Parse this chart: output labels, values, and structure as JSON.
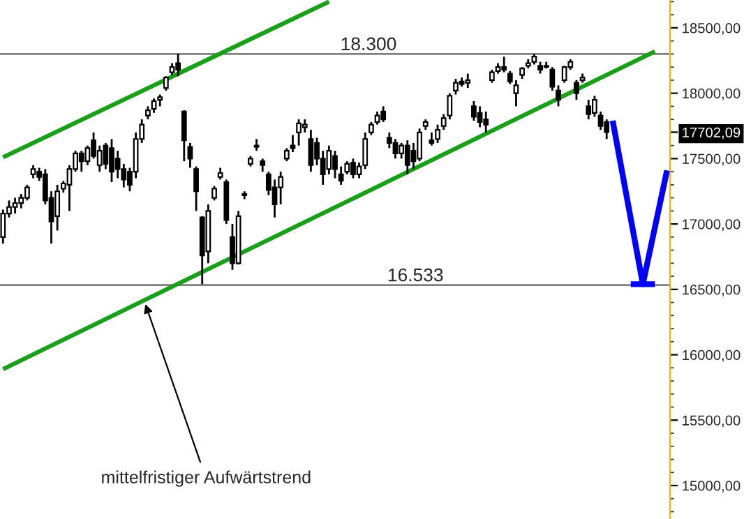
{
  "chart_data": {
    "type": "candlestick",
    "categories": [
      null,
      null,
      null,
      null,
      null,
      null,
      null,
      null,
      null,
      null,
      null,
      null,
      null,
      null,
      null,
      null,
      null,
      null,
      null,
      null,
      null,
      null,
      null,
      null,
      null,
      null,
      null,
      null,
      null,
      null,
      null,
      null,
      null,
      null,
      null,
      null,
      null,
      null,
      null,
      null,
      null,
      null,
      null,
      null,
      null,
      null,
      null,
      null,
      null,
      null,
      null,
      null,
      null,
      null,
      null,
      null,
      null,
      null,
      null,
      null,
      null,
      null,
      null,
      null,
      null,
      null,
      null,
      null,
      null,
      null,
      null,
      null,
      null,
      null,
      null,
      null,
      null,
      null,
      null,
      null,
      null,
      null,
      null,
      null,
      null,
      null,
      null,
      null,
      null,
      null,
      null,
      null,
      null,
      null,
      null,
      null,
      null,
      null,
      null,
      null,
      null,
      null,
      null,
      null,
      null,
      null,
      null,
      null,
      null,
      null,
      null
    ],
    "ohlc": [
      [
        16900,
        17110,
        16850,
        17080
      ],
      [
        17080,
        17180,
        17050,
        17130
      ],
      [
        17130,
        17200,
        17080,
        17160
      ],
      [
        17160,
        17230,
        17120,
        17200
      ],
      [
        17200,
        17300,
        17180,
        17280
      ],
      [
        17380,
        17450,
        17350,
        17420
      ],
      [
        17400,
        17430,
        17330,
        17360
      ],
      [
        17380,
        17420,
        17150,
        17180
      ],
      [
        17200,
        17250,
        16850,
        17020
      ],
      [
        17060,
        17300,
        16950,
        17250
      ],
      [
        17270,
        17330,
        17240,
        17310
      ],
      [
        17300,
        17450,
        17100,
        17420
      ],
      [
        17420,
        17560,
        17400,
        17540
      ],
      [
        17540,
        17560,
        17400,
        17480
      ],
      [
        17480,
        17600,
        17450,
        17580
      ],
      [
        17640,
        17700,
        17500,
        17520
      ],
      [
        17450,
        17600,
        17400,
        17560
      ],
      [
        17600,
        17620,
        17420,
        17460
      ],
      [
        17580,
        17650,
        17320,
        17400
      ],
      [
        17500,
        17560,
        17350,
        17420
      ],
      [
        17420,
        17460,
        17280,
        17340
      ],
      [
        17400,
        17430,
        17250,
        17300
      ],
      [
        17400,
        17700,
        17350,
        17650
      ],
      [
        17650,
        17800,
        17620,
        17760
      ],
      [
        17830,
        17900,
        17800,
        17870
      ],
      [
        17880,
        17960,
        17850,
        17940
      ],
      [
        17950,
        17990,
        17900,
        17970
      ],
      [
        18040,
        18130,
        18020,
        18120
      ],
      [
        18160,
        18230,
        18140,
        18200
      ],
      [
        18230,
        18300,
        18130,
        18180
      ],
      [
        17860,
        17870,
        17480,
        17640
      ],
      [
        17590,
        17620,
        17430,
        17500
      ],
      [
        17420,
        17440,
        17100,
        17250
      ],
      [
        17050,
        17060,
        16540,
        16760
      ],
      [
        16790,
        17150,
        16700,
        17100
      ],
      [
        17200,
        17290,
        17180,
        17270
      ],
      [
        17360,
        17430,
        17340,
        17390
      ],
      [
        17320,
        17340,
        17000,
        17030
      ],
      [
        16900,
        17000,
        16650,
        16700
      ],
      [
        16700,
        17100,
        16690,
        17060
      ],
      [
        17220,
        17250,
        17190,
        17230
      ],
      [
        17460,
        17520,
        17440,
        17500
      ],
      [
        17600,
        17650,
        17560,
        17590
      ],
      [
        17480,
        17500,
        17400,
        17450
      ],
      [
        17380,
        17400,
        17220,
        17260
      ],
      [
        17280,
        17340,
        17050,
        17150
      ],
      [
        17280,
        17400,
        17150,
        17360
      ],
      [
        17500,
        17580,
        17480,
        17560
      ],
      [
        17600,
        17680,
        17550,
        17580
      ],
      [
        17700,
        17800,
        17600,
        17770
      ],
      [
        17740,
        17800,
        17700,
        17760
      ],
      [
        17650,
        17720,
        17400,
        17450
      ],
      [
        17620,
        17660,
        17450,
        17500
      ],
      [
        17500,
        17560,
        17300,
        17380
      ],
      [
        17420,
        17600,
        17380,
        17560
      ],
      [
        17520,
        17560,
        17350,
        17420
      ],
      [
        17380,
        17440,
        17300,
        17330
      ],
      [
        17400,
        17480,
        17380,
        17460
      ],
      [
        17470,
        17500,
        17350,
        17380
      ],
      [
        17380,
        17470,
        17350,
        17440
      ],
      [
        17450,
        17700,
        17420,
        17650
      ],
      [
        17700,
        17780,
        17680,
        17760
      ],
      [
        17780,
        17860,
        17760,
        17830
      ],
      [
        17860,
        17900,
        17780,
        17800
      ],
      [
        17660,
        17700,
        17580,
        17620
      ],
      [
        17620,
        17650,
        17500,
        17540
      ],
      [
        17540,
        17620,
        17500,
        17600
      ],
      [
        17600,
        17640,
        17380,
        17450
      ],
      [
        17560,
        17620,
        17420,
        17480
      ],
      [
        17500,
        17730,
        17480,
        17700
      ],
      [
        17750,
        17800,
        17720,
        17780
      ],
      [
        17640,
        17700,
        17600,
        17620
      ],
      [
        17650,
        17760,
        17620,
        17720
      ],
      [
        17750,
        17840,
        17720,
        17810
      ],
      [
        17830,
        18000,
        17800,
        17980
      ],
      [
        18020,
        18110,
        17990,
        18080
      ],
      [
        18090,
        18120,
        18050,
        18070
      ],
      [
        18080,
        18150,
        18040,
        18100
      ],
      [
        17900,
        17940,
        17790,
        17820
      ],
      [
        17850,
        17900,
        17740,
        17780
      ],
      [
        17800,
        17860,
        17700,
        17760
      ],
      [
        18100,
        18180,
        18080,
        18160
      ],
      [
        18170,
        18230,
        18150,
        18200
      ],
      [
        18200,
        18280,
        18160,
        18180
      ],
      [
        18150,
        18170,
        18070,
        18090
      ],
      [
        18000,
        18100,
        17900,
        18060
      ],
      [
        18140,
        18200,
        18110,
        18190
      ],
      [
        18210,
        18260,
        18190,
        18230
      ],
      [
        18240,
        18300,
        18220,
        18280
      ],
      [
        18210,
        18240,
        18150,
        18180
      ],
      [
        18200,
        18240,
        18190,
        18210
      ],
      [
        18180,
        18200,
        18020,
        18050
      ],
      [
        18020,
        18060,
        17900,
        17950
      ],
      [
        18100,
        18210,
        18080,
        18200
      ],
      [
        18200,
        18260,
        18180,
        18240
      ],
      [
        18080,
        18100,
        17950,
        18000
      ],
      [
        18100,
        18150,
        18080,
        18120
      ],
      [
        17900,
        17950,
        17800,
        17840
      ],
      [
        17850,
        17980,
        17820,
        17950
      ],
      [
        17830,
        17860,
        17720,
        17750
      ],
      [
        17780,
        17800,
        17650,
        17702.09
      ],
      null,
      null,
      null,
      null,
      null,
      null,
      null,
      null,
      null,
      null
    ],
    "series": [
      {
        "type": "line",
        "color": "#18a018",
        "values": [
          17510,
          null,
          null,
          null,
          null,
          null,
          null,
          null,
          null,
          null,
          null,
          null,
          null,
          null,
          null,
          null,
          null,
          null,
          null,
          null,
          null,
          null,
          null,
          null,
          null,
          null,
          null,
          null,
          null,
          null,
          null,
          null,
          null,
          null,
          null,
          null,
          null,
          null,
          null,
          null,
          null,
          null,
          null,
          null,
          null,
          null,
          null,
          null,
          null,
          null,
          null,
          null,
          null,
          null,
          18700,
          null,
          null,
          null,
          null,
          null,
          null,
          null,
          null,
          null,
          null,
          null,
          null,
          null,
          null,
          null,
          null,
          null,
          null,
          null,
          null,
          null,
          null,
          null,
          null,
          null,
          null,
          null,
          null,
          null,
          null,
          null,
          null,
          null,
          null,
          null,
          null,
          null,
          null,
          null,
          null,
          null,
          null,
          null,
          null,
          null,
          null,
          null,
          null,
          null,
          null,
          null,
          null,
          null,
          null,
          null,
          null
        ]
      },
      {
        "type": "line",
        "color": "#18a018",
        "values": [
          15890,
          null,
          null,
          null,
          null,
          null,
          null,
          null,
          null,
          null,
          null,
          null,
          null,
          null,
          null,
          null,
          null,
          null,
          null,
          null,
          null,
          null,
          null,
          null,
          null,
          null,
          null,
          null,
          null,
          null,
          null,
          null,
          null,
          null,
          null,
          null,
          null,
          null,
          null,
          null,
          null,
          null,
          null,
          null,
          null,
          null,
          null,
          null,
          null,
          null,
          null,
          null,
          null,
          null,
          null,
          null,
          null,
          null,
          null,
          null,
          null,
          null,
          null,
          null,
          null,
          null,
          null,
          null,
          null,
          null,
          null,
          null,
          null,
          null,
          null,
          null,
          null,
          null,
          null,
          null,
          null,
          null,
          null,
          null,
          null,
          null,
          null,
          null,
          null,
          null,
          null,
          null,
          null,
          null,
          null,
          null,
          null,
          null,
          null,
          null,
          null,
          null,
          null,
          null,
          null,
          null,
          null,
          null,
          18320,
          null,
          null
        ]
      },
      {
        "type": "line",
        "color": "#0000ff",
        "values": [
          null,
          null,
          null,
          null,
          null,
          null,
          null,
          null,
          null,
          null,
          null,
          null,
          null,
          null,
          null,
          null,
          null,
          null,
          null,
          null,
          null,
          null,
          null,
          null,
          null,
          null,
          null,
          null,
          null,
          null,
          null,
          null,
          null,
          null,
          null,
          null,
          null,
          null,
          null,
          null,
          null,
          null,
          null,
          null,
          null,
          null,
          null,
          null,
          null,
          null,
          null,
          null,
          null,
          null,
          null,
          null,
          null,
          null,
          null,
          null,
          null,
          null,
          null,
          null,
          null,
          null,
          null,
          null,
          null,
          null,
          null,
          null,
          null,
          null,
          null,
          null,
          null,
          null,
          null,
          null,
          null,
          null,
          null,
          null,
          null,
          null,
          null,
          null,
          null,
          null,
          null,
          null,
          null,
          null,
          null,
          null,
          null,
          null,
          null,
          null,
          null,
          17790,
          null,
          null,
          null,
          null,
          16540,
          null,
          null,
          null,
          17410
        ]
      },
      {
        "type": "line",
        "color": "#0000ff",
        "values": [
          null,
          null,
          null,
          null,
          null,
          null,
          null,
          null,
          null,
          null,
          null,
          null,
          null,
          null,
          null,
          null,
          null,
          null,
          null,
          null,
          null,
          null,
          null,
          null,
          null,
          null,
          null,
          null,
          null,
          null,
          null,
          null,
          null,
          null,
          null,
          null,
          null,
          null,
          null,
          null,
          null,
          null,
          null,
          null,
          null,
          null,
          null,
          null,
          null,
          null,
          null,
          null,
          null,
          null,
          null,
          null,
          null,
          null,
          null,
          null,
          null,
          null,
          null,
          null,
          null,
          null,
          null,
          null,
          null,
          null,
          null,
          null,
          null,
          null,
          null,
          null,
          null,
          null,
          null,
          null,
          null,
          null,
          null,
          null,
          null,
          null,
          null,
          null,
          null,
          null,
          null,
          null,
          null,
          null,
          null,
          null,
          null,
          null,
          null,
          null,
          null,
          null,
          null,
          null,
          16540,
          null,
          null,
          null,
          16540,
          null,
          null
        ]
      }
    ],
    "ylim": [
      14744,
      18713
    ],
    "yticks": [
      {
        "value": 15000,
        "label": "15000,00"
      },
      {
        "value": 15500,
        "label": "15500,00"
      },
      {
        "value": 16000,
        "label": "16000,00"
      },
      {
        "value": 16500,
        "label": "16500,00"
      },
      {
        "value": 17000,
        "label": "17000,00"
      },
      {
        "value": 17500,
        "label": "17500,00"
      },
      {
        "value": 17702.09,
        "label": "17702,09"
      },
      {
        "value": 18000,
        "label": "18000,00"
      },
      {
        "value": 18500,
        "label": "18500,00"
      }
    ],
    "ref_lines": [
      {
        "axis": "y",
        "value": 18300,
        "label": "18.300",
        "color": "#808080"
      },
      {
        "axis": "y",
        "value": 16533,
        "label": "16.533",
        "color": "#808080"
      }
    ],
    "annotations": [
      "mittelfristiger Aufwärtstrend"
    ]
  }
}
